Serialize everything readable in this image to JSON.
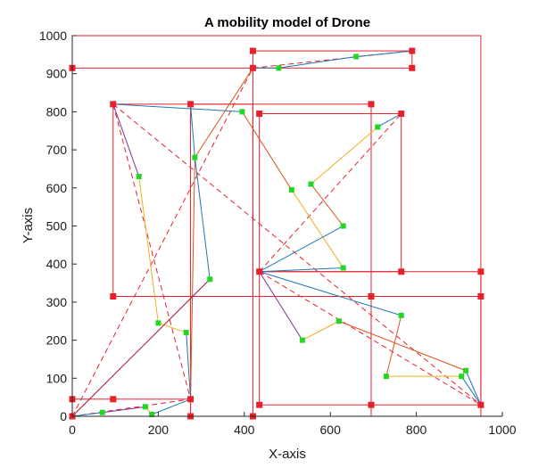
{
  "chart_data": {
    "type": "line",
    "title": "A mobility model of Drone",
    "xlabel": "X-axis",
    "ylabel": "Y-axis",
    "xlim": [
      0,
      1000
    ],
    "ylim": [
      0,
      1000
    ],
    "xticks": [
      0,
      200,
      400,
      600,
      800,
      1000
    ],
    "yticks": [
      0,
      100,
      200,
      300,
      400,
      500,
      600,
      700,
      800,
      900,
      1000
    ],
    "xtick_labels": [
      "0",
      "200",
      "400",
      "600",
      "800",
      "1000"
    ],
    "ytick_labels": [
      "0",
      "100",
      "200",
      "300",
      "400",
      "500",
      "600",
      "700",
      "800",
      "900",
      "1000"
    ],
    "grid": false,
    "colors": {
      "cell": "#e8202a",
      "cell_marker": "#e8202a",
      "waypoint": "#22d622",
      "blue": "#1f77b4",
      "orange": "#d95319",
      "yellow": "#edb120",
      "purple": "#7e2f8e",
      "darkred": "#a2142f"
    },
    "cells": [
      {
        "x": [
          0,
          950
        ],
        "y": [
          0,
          1000
        ]
      },
      {
        "x": [
          0,
          420
        ],
        "y": [
          0,
          915
        ]
      },
      {
        "x": [
          420,
          790
        ],
        "y": [
          915,
          960
        ]
      },
      {
        "x": [
          95,
          420
        ],
        "y": [
          315,
          820
        ]
      },
      {
        "x": [
          275,
          695
        ],
        "y": [
          0,
          820
        ]
      },
      {
        "x": [
          435,
          765
        ],
        "y": [
          380,
          795
        ]
      },
      {
        "x": [
          435,
          950
        ],
        "y": [
          30,
          380
        ]
      },
      {
        "x": [
          0,
          275
        ],
        "y": [
          0,
          45
        ]
      },
      {
        "x": [
          95,
          950
        ],
        "y": [
          315,
          315
        ]
      }
    ],
    "cell_markers": [
      {
        "x": 0,
        "y": 915
      },
      {
        "x": 0,
        "y": 45
      },
      {
        "x": 0,
        "y": 0
      },
      {
        "x": 420,
        "y": 960
      },
      {
        "x": 790,
        "y": 960
      },
      {
        "x": 420,
        "y": 915
      },
      {
        "x": 790,
        "y": 915
      },
      {
        "x": 95,
        "y": 820
      },
      {
        "x": 275,
        "y": 820
      },
      {
        "x": 695,
        "y": 820
      },
      {
        "x": 435,
        "y": 795
      },
      {
        "x": 765,
        "y": 795
      },
      {
        "x": 435,
        "y": 380
      },
      {
        "x": 765,
        "y": 380
      },
      {
        "x": 950,
        "y": 380
      },
      {
        "x": 95,
        "y": 315
      },
      {
        "x": 695,
        "y": 315
      },
      {
        "x": 950,
        "y": 315
      },
      {
        "x": 95,
        "y": 45
      },
      {
        "x": 275,
        "y": 45
      },
      {
        "x": 435,
        "y": 30
      },
      {
        "x": 695,
        "y": 30
      },
      {
        "x": 950,
        "y": 30
      },
      {
        "x": 275,
        "y": 0
      },
      {
        "x": 420,
        "y": 0
      }
    ],
    "dashed_paths": [
      {
        "x": [
          0,
          420
        ],
        "y": [
          0,
          915
        ]
      },
      {
        "x": [
          420,
          790
        ],
        "y": [
          915,
          960
        ]
      },
      {
        "x": [
          95,
          275
        ],
        "y": [
          820,
          45
        ]
      },
      {
        "x": [
          95,
          950
        ],
        "y": [
          820,
          30
        ]
      },
      {
        "x": [
          435,
          765
        ],
        "y": [
          380,
          795
        ]
      },
      {
        "x": [
          435,
          950
        ],
        "y": [
          380,
          30
        ]
      },
      {
        "x": [
          0,
          275
        ],
        "y": [
          0,
          45
        ]
      }
    ],
    "waypoints": [
      {
        "x": 480,
        "y": 915
      },
      {
        "x": 660,
        "y": 945
      },
      {
        "x": 395,
        "y": 800
      },
      {
        "x": 285,
        "y": 680
      },
      {
        "x": 155,
        "y": 630
      },
      {
        "x": 200,
        "y": 245
      },
      {
        "x": 265,
        "y": 220
      },
      {
        "x": 320,
        "y": 360
      },
      {
        "x": 510,
        "y": 595
      },
      {
        "x": 555,
        "y": 610
      },
      {
        "x": 630,
        "y": 500
      },
      {
        "x": 710,
        "y": 760
      },
      {
        "x": 630,
        "y": 390
      },
      {
        "x": 765,
        "y": 265
      },
      {
        "x": 620,
        "y": 250
      },
      {
        "x": 535,
        "y": 200
      },
      {
        "x": 730,
        "y": 105
      },
      {
        "x": 905,
        "y": 105
      },
      {
        "x": 915,
        "y": 120
      },
      {
        "x": 70,
        "y": 10
      },
      {
        "x": 170,
        "y": 25
      },
      {
        "x": 185,
        "y": 5
      }
    ],
    "trajectories": [
      {
        "color": "#1f77b4",
        "x": [
          420,
          480,
          660,
          790
        ],
        "y": [
          915,
          915,
          945,
          960
        ]
      },
      {
        "color": "#1f77b4",
        "x": [
          95,
          395
        ],
        "y": [
          820,
          800
        ]
      },
      {
        "color": "#d95319",
        "x": [
          395,
          510
        ],
        "y": [
          800,
          595
        ]
      },
      {
        "color": "#edb120",
        "x": [
          510,
          630
        ],
        "y": [
          595,
          390
        ]
      },
      {
        "color": "#1f77b4",
        "x": [
          630,
          435
        ],
        "y": [
          390,
          380
        ]
      },
      {
        "color": "#d95319",
        "x": [
          420,
          285,
          275
        ],
        "y": [
          915,
          680,
          45
        ]
      },
      {
        "color": "#7e2f8e",
        "x": [
          95,
          155
        ],
        "y": [
          820,
          630
        ]
      },
      {
        "color": "#edb120",
        "x": [
          155,
          200,
          265
        ],
        "y": [
          630,
          245,
          220
        ]
      },
      {
        "color": "#1f77b4",
        "x": [
          265,
          275
        ],
        "y": [
          220,
          45
        ]
      },
      {
        "color": "#1f77b4",
        "x": [
          275,
          285,
          320
        ],
        "y": [
          820,
          680,
          360
        ]
      },
      {
        "color": "#a2142f",
        "x": [
          0,
          320
        ],
        "y": [
          0,
          360
        ]
      },
      {
        "color": "#1f77b4",
        "x": [
          435,
          630
        ],
        "y": [
          380,
          500
        ]
      },
      {
        "color": "#d95319",
        "x": [
          630,
          555
        ],
        "y": [
          500,
          610
        ]
      },
      {
        "color": "#edb120",
        "x": [
          555,
          710
        ],
        "y": [
          610,
          760
        ]
      },
      {
        "color": "#1f77b4",
        "x": [
          710,
          765
        ],
        "y": [
          760,
          795
        ]
      },
      {
        "color": "#1f77b4",
        "x": [
          435,
          765
        ],
        "y": [
          380,
          265
        ]
      },
      {
        "color": "#d95319",
        "x": [
          765,
          730
        ],
        "y": [
          265,
          105
        ]
      },
      {
        "color": "#edb120",
        "x": [
          730,
          905
        ],
        "y": [
          105,
          105
        ]
      },
      {
        "color": "#1f77b4",
        "x": [
          905,
          950
        ],
        "y": [
          105,
          30
        ]
      },
      {
        "color": "#7e2f8e",
        "x": [
          435,
          535
        ],
        "y": [
          380,
          200
        ]
      },
      {
        "color": "#edb120",
        "x": [
          535,
          620
        ],
        "y": [
          200,
          250
        ]
      },
      {
        "color": "#d95319",
        "x": [
          620,
          915
        ],
        "y": [
          250,
          120
        ]
      },
      {
        "color": "#1f77b4",
        "x": [
          915,
          950
        ],
        "y": [
          120,
          30
        ]
      },
      {
        "color": "#1f77b4",
        "x": [
          0,
          70
        ],
        "y": [
          0,
          10
        ]
      },
      {
        "color": "#7e2f8e",
        "x": [
          70,
          170
        ],
        "y": [
          10,
          25
        ]
      },
      {
        "color": "#edb120",
        "x": [
          170,
          185
        ],
        "y": [
          25,
          5
        ]
      },
      {
        "color": "#1f77b4",
        "x": [
          185,
          275
        ],
        "y": [
          5,
          45
        ]
      }
    ]
  }
}
